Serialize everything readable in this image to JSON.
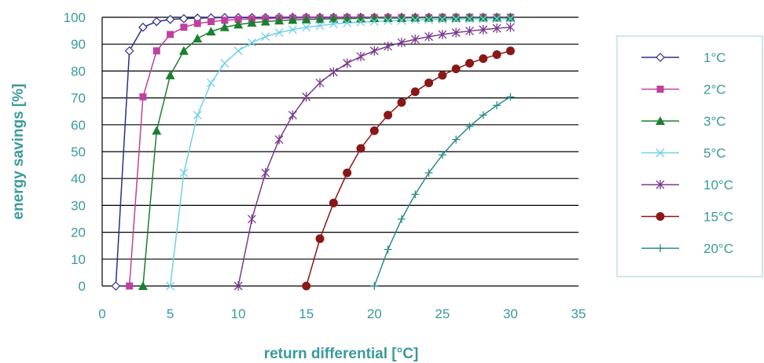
{
  "chart_data": {
    "type": "line",
    "xlabel": "return differential [°C]",
    "ylabel": "energy savings [%]",
    "xlim": [
      0,
      35
    ],
    "ylim": [
      0,
      100
    ],
    "xticks": [
      0,
      5,
      10,
      15,
      20,
      25,
      30,
      35
    ],
    "yticks": [
      0,
      10,
      20,
      30,
      40,
      50,
      60,
      70,
      80,
      90,
      100
    ],
    "grid": "horizontal",
    "legend_position": "right",
    "series": [
      {
        "name": "1°C",
        "color": "#2e2e8a",
        "marker": "diamond",
        "x": [
          1,
          2,
          3,
          4,
          5,
          6,
          7,
          8,
          9,
          10,
          11,
          12,
          13,
          14,
          15,
          16,
          17,
          18,
          19,
          20,
          21,
          22,
          23,
          24,
          25,
          26,
          27,
          28,
          29,
          30
        ],
        "y": [
          0,
          87.5,
          96.3,
          98.4,
          99.2,
          99.5,
          99.7,
          99.8,
          99.9,
          99.9,
          99.9,
          99.9,
          100,
          100,
          100,
          100,
          100,
          100,
          100,
          100,
          100,
          100,
          100,
          100,
          100,
          100,
          100,
          100,
          100,
          100
        ]
      },
      {
        "name": "2°C",
        "color": "#c040a0",
        "marker": "square",
        "x": [
          2,
          3,
          4,
          5,
          6,
          7,
          8,
          9,
          10,
          11,
          12,
          13,
          14,
          15,
          16,
          17,
          18,
          19,
          20,
          21,
          22,
          23,
          24,
          25,
          26,
          27,
          28,
          29,
          30
        ],
        "y": [
          0,
          70.4,
          87.5,
          93.6,
          96.3,
          97.7,
          98.4,
          98.9,
          99.2,
          99.4,
          99.5,
          99.6,
          99.7,
          99.8,
          99.8,
          99.8,
          99.9,
          99.9,
          99.9,
          99.9,
          99.9,
          99.9,
          99.9,
          100,
          100,
          100,
          100,
          100,
          100
        ]
      },
      {
        "name": "3°C",
        "color": "#1a8030",
        "marker": "triangle",
        "x": [
          3,
          4,
          5,
          6,
          7,
          8,
          9,
          10,
          11,
          12,
          13,
          14,
          15,
          16,
          17,
          18,
          19,
          20,
          21,
          22,
          23,
          24,
          25,
          26,
          27,
          28,
          29,
          30
        ],
        "y": [
          0,
          57.8,
          78.4,
          87.5,
          92.1,
          94.7,
          96.3,
          97.3,
          98.0,
          98.4,
          98.8,
          99.0,
          99.2,
          99.3,
          99.5,
          99.5,
          99.6,
          99.7,
          99.7,
          99.7,
          99.8,
          99.8,
          99.8,
          99.8,
          99.9,
          99.9,
          99.9,
          99.9
        ]
      },
      {
        "name": "5°C",
        "color": "#70d0e8",
        "marker": "x",
        "x": [
          5,
          6,
          7,
          8,
          9,
          10,
          11,
          12,
          13,
          14,
          15,
          16,
          17,
          18,
          19,
          20,
          21,
          22,
          23,
          24,
          25,
          26,
          27,
          28,
          29,
          30
        ],
        "y": [
          0,
          42.1,
          63.6,
          75.6,
          82.9,
          87.5,
          90.6,
          92.8,
          94.3,
          95.4,
          96.3,
          96.9,
          97.5,
          97.9,
          98.2,
          98.4,
          98.7,
          98.8,
          99.0,
          99.1,
          99.2,
          99.3,
          99.4,
          99.4,
          99.5,
          99.5
        ]
      },
      {
        "name": "10°C",
        "color": "#7a3a90",
        "marker": "star",
        "x": [
          10,
          11,
          12,
          13,
          14,
          15,
          16,
          17,
          18,
          19,
          20,
          21,
          22,
          23,
          24,
          25,
          26,
          27,
          28,
          29,
          30
        ],
        "y": [
          0,
          24.9,
          42.1,
          54.5,
          63.6,
          70.4,
          75.6,
          79.6,
          82.9,
          85.4,
          87.5,
          89.2,
          90.6,
          91.8,
          92.8,
          93.6,
          94.3,
          94.9,
          95.4,
          95.9,
          96.3
        ]
      },
      {
        "name": "15°C",
        "color": "#8a1818",
        "marker": "circle",
        "x": [
          15,
          16,
          17,
          18,
          19,
          20,
          21,
          22,
          23,
          24,
          25,
          26,
          27,
          28,
          29,
          30
        ],
        "y": [
          0,
          17.6,
          30.9,
          42.1,
          51.2,
          57.8,
          63.6,
          68.3,
          72.3,
          75.6,
          78.4,
          80.8,
          82.9,
          84.6,
          86.1,
          87.5
        ]
      },
      {
        "name": "20°C",
        "color": "#2a8a8a",
        "marker": "plus",
        "x": [
          20,
          21,
          22,
          23,
          24,
          25,
          26,
          27,
          28,
          29,
          30
        ],
        "y": [
          0,
          13.6,
          24.9,
          34.1,
          42.1,
          48.8,
          54.5,
          59.4,
          63.6,
          67.2,
          70.4
        ]
      }
    ]
  }
}
